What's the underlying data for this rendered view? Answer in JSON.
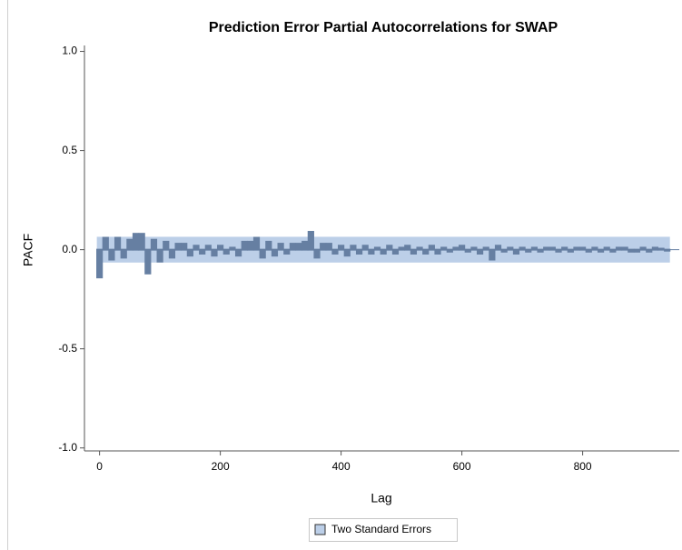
{
  "chart_data": {
    "type": "needle",
    "title": "Prediction Error Partial Autocorrelations for SWAP",
    "x_label": "Lag",
    "y_label": "PACF",
    "xlim": [
      -25,
      960
    ],
    "ylim": [
      -1.015,
      1.03
    ],
    "xticks": [
      0,
      200,
      400,
      600,
      800
    ],
    "yticks": [
      {
        "value": 1.0,
        "label": "1.0"
      },
      {
        "value": 0.5,
        "label": "0.5"
      },
      {
        "value": 0.0,
        "label": "0.0"
      },
      {
        "value": -0.5,
        "label": "-0.5"
      },
      {
        "value": -1.0,
        "label": "-1.0"
      }
    ],
    "color": "#667fa2",
    "band": {
      "name": "Two Standard Errors",
      "lower": -0.065,
      "upper": 0.065,
      "color": "#bccfe8"
    },
    "x": [
      0,
      10,
      20,
      30,
      40,
      50,
      60,
      70,
      80,
      90,
      100,
      110,
      120,
      130,
      140,
      150,
      160,
      170,
      180,
      190,
      200,
      210,
      220,
      230,
      240,
      250,
      260,
      270,
      280,
      290,
      300,
      310,
      320,
      330,
      340,
      350,
      360,
      370,
      380,
      390,
      400,
      410,
      420,
      430,
      440,
      450,
      460,
      470,
      480,
      490,
      500,
      510,
      520,
      530,
      540,
      550,
      560,
      570,
      580,
      590,
      600,
      610,
      620,
      630,
      640,
      650,
      660,
      670,
      680,
      690,
      700,
      710,
      720,
      730,
      740,
      750,
      760,
      770,
      780,
      790,
      800,
      810,
      820,
      830,
      840,
      850,
      860,
      870,
      880,
      890,
      900,
      910,
      920,
      930,
      940
    ],
    "values": [
      -0.14,
      0.06,
      -0.05,
      0.06,
      -0.04,
      0.05,
      0.08,
      0.08,
      -0.12,
      0.05,
      -0.06,
      0.04,
      -0.04,
      0.03,
      0.03,
      -0.03,
      0.02,
      -0.02,
      0.02,
      -0.03,
      0.02,
      -0.02,
      0.01,
      -0.03,
      0.04,
      0.04,
      0.06,
      -0.04,
      0.04,
      -0.03,
      0.03,
      -0.02,
      0.03,
      0.03,
      0.04,
      0.09,
      -0.04,
      0.03,
      0.03,
      -0.02,
      0.02,
      -0.03,
      0.02,
      -0.02,
      0.02,
      -0.02,
      0.01,
      -0.02,
      0.02,
      -0.02,
      0.01,
      0.02,
      -0.02,
      0.01,
      -0.02,
      0.02,
      -0.02,
      0.01,
      -0.01,
      0.01,
      0.02,
      -0.01,
      0.01,
      -0.02,
      0.01,
      -0.05,
      0.02,
      -0.01,
      0.01,
      -0.02,
      0.01,
      -0.01,
      0.01,
      -0.01,
      0.01,
      0.01,
      -0.01,
      0.01,
      -0.01,
      0.01,
      0.01,
      -0.01,
      0.01,
      -0.01,
      0.01,
      -0.01,
      0.01,
      0.01,
      -0.01,
      -0.01,
      0.01,
      -0.01,
      0.01,
      0.005,
      -0.005
    ]
  }
}
